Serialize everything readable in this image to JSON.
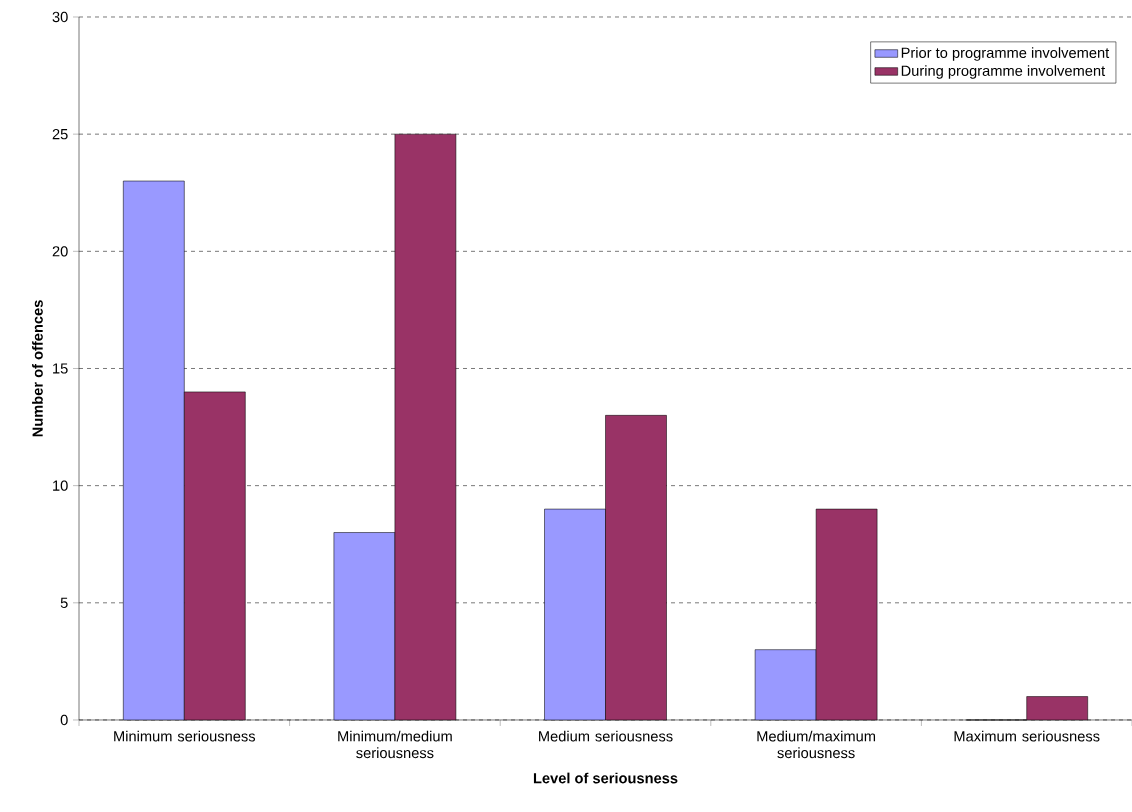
{
  "chart_data": {
    "type": "bar",
    "xlabel": "Level of seriousness",
    "ylabel": "Number of offences",
    "categories": [
      "Minimum seriousness",
      "Minimum/medium seriousness",
      "Medium seriousness",
      "Medium/maximum seriousness",
      "Maximum seriousness"
    ],
    "series": [
      {
        "name": "Prior to programme involvement",
        "color": "#9999ff",
        "values": [
          23,
          8,
          9,
          3,
          0
        ]
      },
      {
        "name": "During programme involvement",
        "color": "#993366",
        "values": [
          14,
          25,
          13,
          9,
          1
        ]
      }
    ],
    "ylim": [
      0,
      30
    ],
    "yticks": [
      0,
      5,
      10,
      15,
      20,
      25,
      30
    ],
    "grid": "y",
    "legend": "top right"
  }
}
